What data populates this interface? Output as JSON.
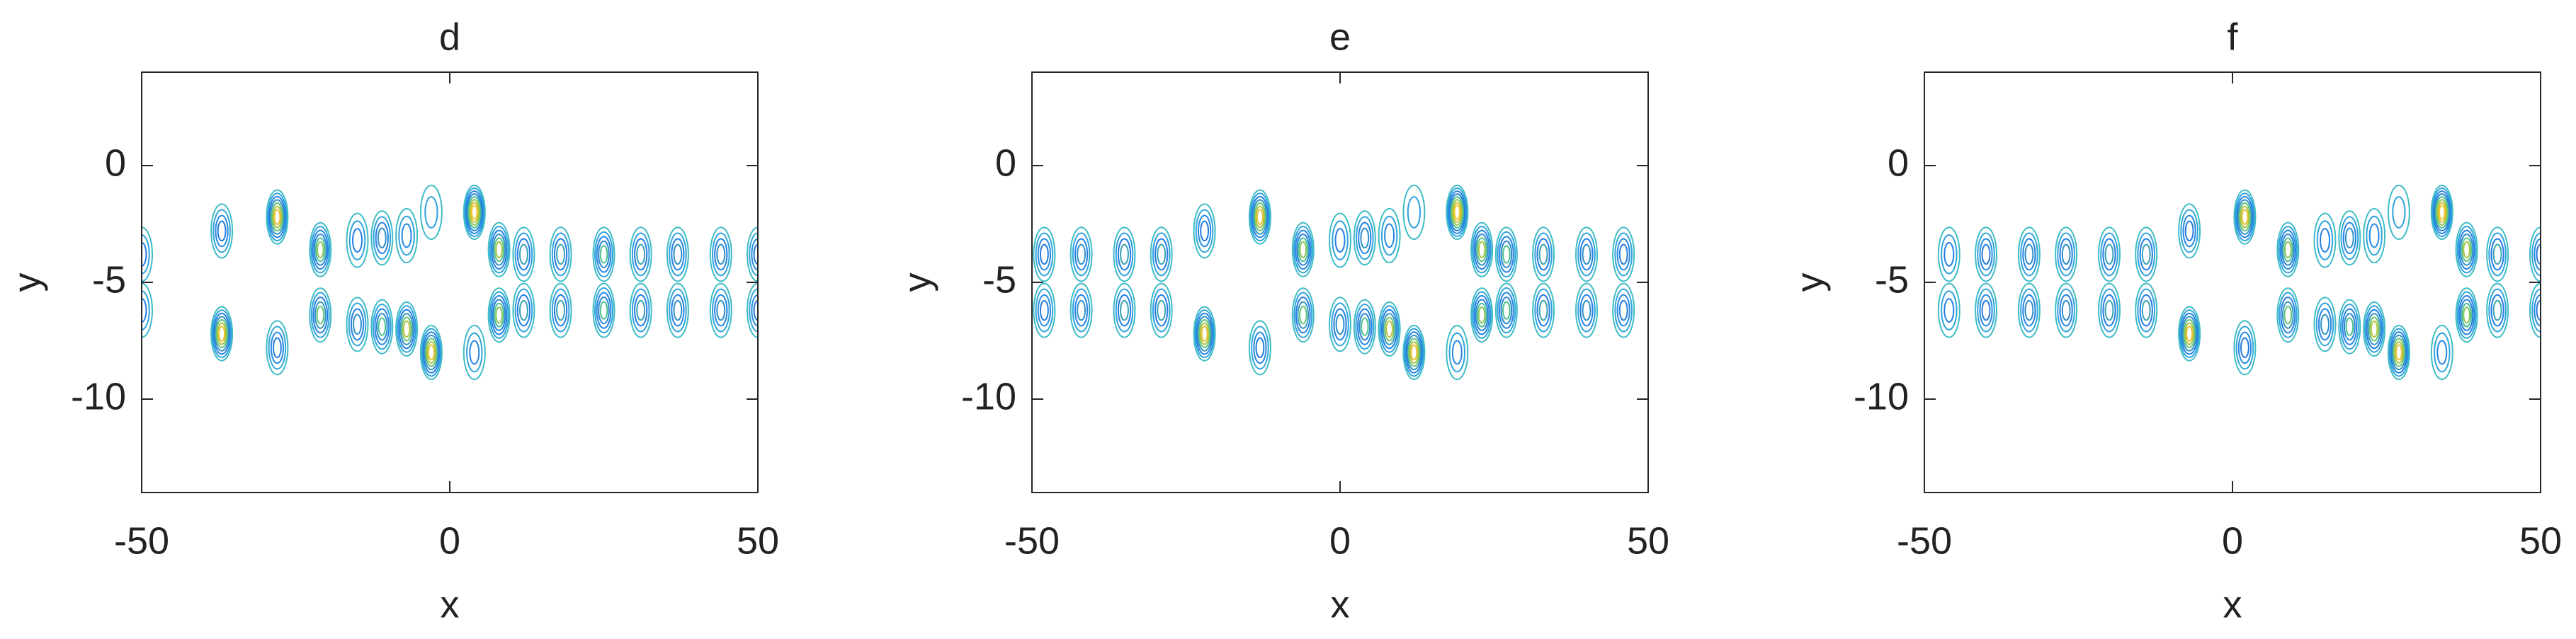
{
  "chart_data": [
    {
      "type": "contour",
      "title": "d",
      "xlabel": "x",
      "ylabel": "y",
      "xlim": [
        -50,
        50
      ],
      "ylim": [
        -14,
        4
      ],
      "xticks": [
        -50,
        0,
        50
      ],
      "yticks": [
        -10,
        -5,
        0
      ],
      "colormap": [
        "#3fbcc6",
        "#2b9de0",
        "#1f6fe8",
        "#47c38f",
        "#a8c43e",
        "#f0c02f",
        "#f9e41e"
      ],
      "x": [
        -37,
        -28,
        -21,
        -15,
        -11,
        -7,
        -3,
        4,
        8,
        -37,
        -28,
        -21,
        -15,
        -11,
        -7,
        -3,
        4,
        8,
        -50,
        12,
        18,
        25,
        31,
        37,
        44,
        50,
        -50,
        12,
        18,
        25,
        31,
        37,
        44,
        50
      ],
      "y": [
        -2.8,
        -2.2,
        -3.6,
        -3.2,
        -3.1,
        -3.0,
        -2.0,
        -2.0,
        -3.6,
        -7.2,
        -7.8,
        -6.4,
        -6.8,
        -6.9,
        -7.0,
        -8.0,
        -8.0,
        -6.4,
        -3.8,
        -3.8,
        -3.8,
        -3.8,
        -3.8,
        -3.8,
        -3.8,
        -3.8,
        -6.2,
        -6.2,
        -6.2,
        -6.2,
        -6.2,
        -6.2,
        -6.2,
        -6.2
      ],
      "values": [
        0.45,
        0.9,
        0.7,
        0.4,
        0.5,
        0.35,
        0.3,
        0.95,
        0.75,
        0.9,
        0.45,
        0.65,
        0.5,
        0.6,
        0.8,
        0.9,
        0.35,
        0.7,
        0.4,
        0.55,
        0.55,
        0.6,
        0.55,
        0.5,
        0.5,
        0.45,
        0.4,
        0.55,
        0.55,
        0.6,
        0.55,
        0.5,
        0.5,
        0.45
      ]
    },
    {
      "type": "contour",
      "title": "e",
      "xlabel": "x",
      "ylabel": "y",
      "xlim": [
        -50,
        50
      ],
      "ylim": [
        -14,
        4
      ],
      "xticks": [
        -50,
        0,
        50
      ],
      "yticks": [
        -10,
        -5,
        0
      ],
      "colormap": [
        "#3fbcc6",
        "#2b9de0",
        "#1f6fe8",
        "#47c38f",
        "#a8c43e",
        "#f0c02f",
        "#f9e41e"
      ],
      "x": [
        -22,
        -13,
        -6,
        0,
        4,
        8,
        12,
        19,
        23,
        -22,
        -13,
        -6,
        0,
        4,
        8,
        12,
        19,
        23,
        -48,
        -42,
        -35,
        -29,
        27,
        33,
        40,
        46,
        -48,
        -42,
        -35,
        -29,
        27,
        33,
        40,
        46
      ],
      "y": [
        -2.8,
        -2.2,
        -3.6,
        -3.2,
        -3.1,
        -3.0,
        -2.0,
        -2.0,
        -3.6,
        -7.2,
        -7.8,
        -6.4,
        -6.8,
        -6.9,
        -7.0,
        -8.0,
        -8.0,
        -6.4,
        -3.8,
        -3.8,
        -3.8,
        -3.8,
        -3.8,
        -3.8,
        -3.8,
        -3.8,
        -6.2,
        -6.2,
        -6.2,
        -6.2,
        -6.2,
        -6.2,
        -6.2,
        -6.2
      ],
      "values": [
        0.45,
        0.9,
        0.7,
        0.4,
        0.5,
        0.35,
        0.3,
        0.95,
        0.75,
        0.9,
        0.45,
        0.65,
        0.5,
        0.6,
        0.8,
        0.9,
        0.35,
        0.7,
        0.45,
        0.5,
        0.55,
        0.55,
        0.6,
        0.55,
        0.5,
        0.45,
        0.45,
        0.5,
        0.55,
        0.55,
        0.6,
        0.55,
        0.5,
        0.45
      ]
    },
    {
      "type": "contour",
      "title": "f",
      "xlabel": "x",
      "ylabel": "y",
      "xlim": [
        -50,
        50
      ],
      "ylim": [
        -14,
        4
      ],
      "xticks": [
        -50,
        0,
        50
      ],
      "yticks": [
        -10,
        -5,
        0
      ],
      "colormap": [
        "#3fbcc6",
        "#2b9de0",
        "#1f6fe8",
        "#47c38f",
        "#a8c43e",
        "#f0c02f",
        "#f9e41e"
      ],
      "x": [
        -7,
        2,
        9,
        15,
        19,
        23,
        27,
        34,
        38,
        -7,
        2,
        9,
        15,
        19,
        23,
        27,
        34,
        38,
        -46,
        -40,
        -33,
        -27,
        -20,
        -14,
        43,
        50,
        -46,
        -40,
        -33,
        -27,
        -20,
        -14,
        43,
        50
      ],
      "y": [
        -2.8,
        -2.2,
        -3.6,
        -3.2,
        -3.1,
        -3.0,
        -2.0,
        -2.0,
        -3.6,
        -7.2,
        -7.8,
        -6.4,
        -6.8,
        -6.9,
        -7.0,
        -8.0,
        -8.0,
        -6.4,
        -3.8,
        -3.8,
        -3.8,
        -3.8,
        -3.8,
        -3.8,
        -3.8,
        -3.8,
        -6.2,
        -6.2,
        -6.2,
        -6.2,
        -6.2,
        -6.2,
        -6.2,
        -6.2
      ],
      "values": [
        0.45,
        0.9,
        0.7,
        0.4,
        0.5,
        0.35,
        0.3,
        0.95,
        0.75,
        0.9,
        0.45,
        0.65,
        0.5,
        0.6,
        0.8,
        0.9,
        0.35,
        0.7,
        0.4,
        0.45,
        0.5,
        0.5,
        0.55,
        0.55,
        0.55,
        0.45,
        0.4,
        0.45,
        0.5,
        0.5,
        0.55,
        0.55,
        0.55,
        0.45
      ]
    }
  ]
}
